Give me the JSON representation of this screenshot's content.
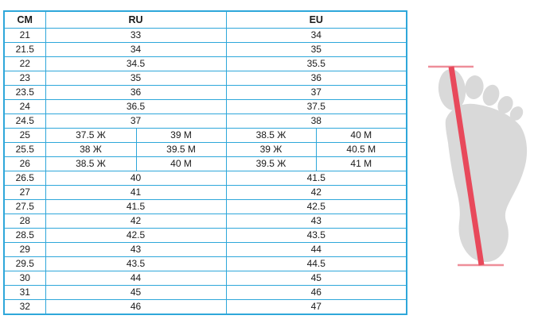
{
  "chart_data": {
    "type": "table",
    "columns": [
      "CM",
      "RU",
      "EU"
    ],
    "rows": [
      {
        "cm": "21",
        "ru": [
          "33"
        ],
        "eu": [
          "34"
        ]
      },
      {
        "cm": "21.5",
        "ru": [
          "34"
        ],
        "eu": [
          "35"
        ]
      },
      {
        "cm": "22",
        "ru": [
          "34.5"
        ],
        "eu": [
          "35.5"
        ]
      },
      {
        "cm": "23",
        "ru": [
          "35"
        ],
        "eu": [
          "36"
        ]
      },
      {
        "cm": "23.5",
        "ru": [
          "36"
        ],
        "eu": [
          "37"
        ]
      },
      {
        "cm": "24",
        "ru": [
          "36.5"
        ],
        "eu": [
          "37.5"
        ]
      },
      {
        "cm": "24.5",
        "ru": [
          "37"
        ],
        "eu": [
          "38"
        ]
      },
      {
        "cm": "25",
        "ru": [
          "37.5 Ж",
          "39 М"
        ],
        "eu": [
          "38.5 Ж",
          "40 М"
        ]
      },
      {
        "cm": "25.5",
        "ru": [
          "38 Ж",
          "39.5 М"
        ],
        "eu": [
          "39 Ж",
          "40.5 М"
        ]
      },
      {
        "cm": "26",
        "ru": [
          "38.5 Ж",
          "40 М"
        ],
        "eu": [
          "39.5 Ж",
          "41 М"
        ]
      },
      {
        "cm": "26.5",
        "ru": [
          "40"
        ],
        "eu": [
          "41.5"
        ]
      },
      {
        "cm": "27",
        "ru": [
          "41"
        ],
        "eu": [
          "42"
        ]
      },
      {
        "cm": "27.5",
        "ru": [
          "41.5"
        ],
        "eu": [
          "42.5"
        ]
      },
      {
        "cm": "28",
        "ru": [
          "42"
        ],
        "eu": [
          "43"
        ]
      },
      {
        "cm": "28.5",
        "ru": [
          "42.5"
        ],
        "eu": [
          "43.5"
        ]
      },
      {
        "cm": "29",
        "ru": [
          "43"
        ],
        "eu": [
          "44"
        ]
      },
      {
        "cm": "29.5",
        "ru": [
          "43.5"
        ],
        "eu": [
          "44.5"
        ]
      },
      {
        "cm": "30",
        "ru": [
          "44"
        ],
        "eu": [
          "45"
        ]
      },
      {
        "cm": "31",
        "ru": [
          "45"
        ],
        "eu": [
          "46"
        ]
      },
      {
        "cm": "32",
        "ru": [
          "46"
        ],
        "eu": [
          "47"
        ]
      }
    ]
  },
  "icons": {
    "foot": "foot-measurement-icon"
  },
  "colors": {
    "table_border": "#2ea7da",
    "text": "#1a1a1a",
    "foot_gray": "#d9d9d9",
    "measure_line": "#e8495b",
    "measure_line_light": "#ee8e99"
  }
}
